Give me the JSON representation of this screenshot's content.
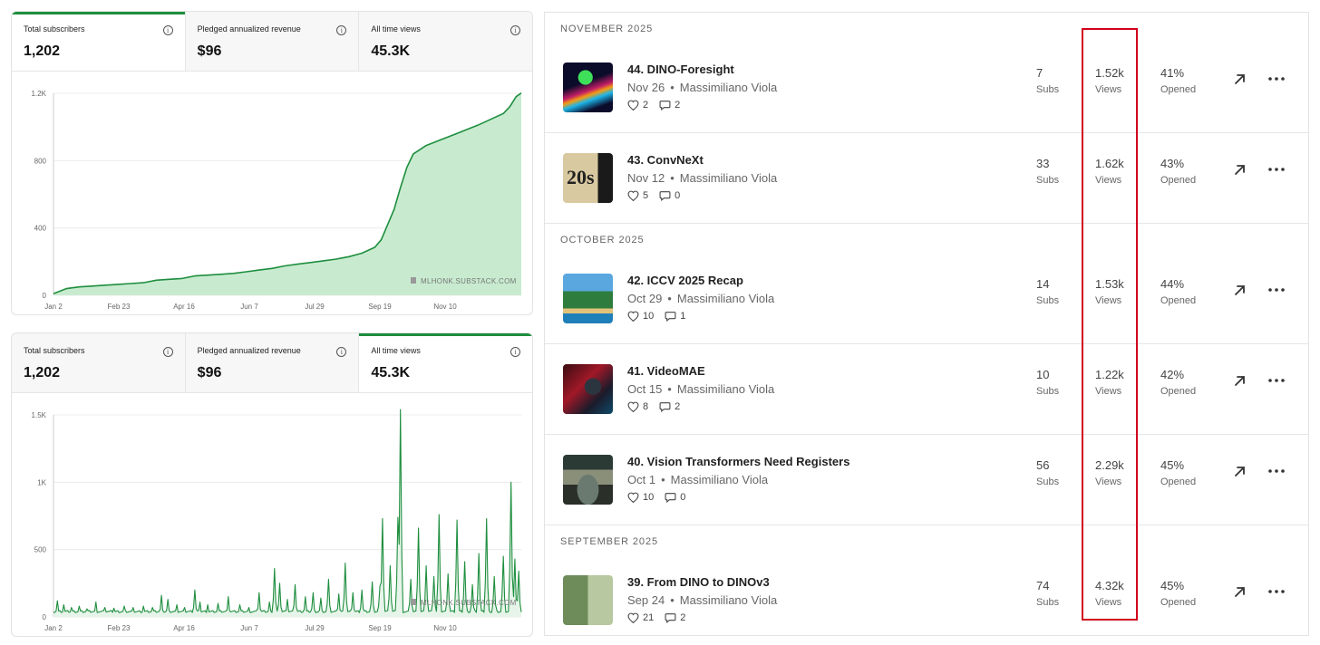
{
  "panels": [
    {
      "stats": [
        {
          "label": "Total subscribers",
          "value": "1,202",
          "active": true
        },
        {
          "label": "Pledged annualized revenue",
          "value": "$96",
          "active": false
        },
        {
          "label": "All time views",
          "value": "45.3K",
          "active": false
        }
      ],
      "chart_data": {
        "type": "area",
        "title": "",
        "xlabel": "",
        "ylabel": "",
        "x_tick_labels": [
          "Jan 2",
          "Feb 23",
          "Apr 16",
          "Jun 7",
          "Jul 29",
          "Sep 19",
          "Nov 10"
        ],
        "y_tick_labels": [
          "0",
          "400",
          "800",
          "1.2K"
        ],
        "ylim": [
          0,
          1200
        ],
        "grid": "horizontal",
        "color": "#1e8e3e",
        "fill": "#c8ebd0",
        "watermark": "MLHONK.SUBSTACK.COM",
        "series": [
          {
            "values": [
              [
                0,
                10
              ],
              [
                10,
                40
              ],
              [
                20,
                50
              ],
              [
                30,
                55
              ],
              [
                40,
                60
              ],
              [
                50,
                65
              ],
              [
                60,
                70
              ],
              [
                70,
                75
              ],
              [
                80,
                90
              ],
              [
                90,
                95
              ],
              [
                100,
                100
              ],
              [
                110,
                115
              ],
              [
                120,
                120
              ],
              [
                130,
                125
              ],
              [
                140,
                130
              ],
              [
                150,
                140
              ],
              [
                160,
                150
              ],
              [
                170,
                160
              ],
              [
                180,
                175
              ],
              [
                190,
                185
              ],
              [
                200,
                195
              ],
              [
                210,
                205
              ],
              [
                220,
                215
              ],
              [
                230,
                230
              ],
              [
                240,
                250
              ],
              [
                250,
                285
              ],
              [
                255,
                330
              ],
              [
                260,
                420
              ],
              [
                265,
                510
              ],
              [
                270,
                640
              ],
              [
                275,
                760
              ],
              [
                280,
                840
              ],
              [
                290,
                890
              ],
              [
                300,
                920
              ],
              [
                310,
                950
              ],
              [
                320,
                980
              ],
              [
                330,
                1010
              ],
              [
                340,
                1045
              ],
              [
                350,
                1080
              ],
              [
                355,
                1120
              ],
              [
                360,
                1180
              ],
              [
                364,
                1202
              ]
            ]
          }
        ]
      }
    },
    {
      "stats": [
        {
          "label": "Total subscribers",
          "value": "1,202",
          "active": false
        },
        {
          "label": "Pledged annualized revenue",
          "value": "$96",
          "active": false
        },
        {
          "label": "All time views",
          "value": "45.3K",
          "active": true
        }
      ],
      "chart_data": {
        "type": "line",
        "title": "",
        "xlabel": "",
        "ylabel": "",
        "x_tick_labels": [
          "Jan 2",
          "Feb 23",
          "Apr 16",
          "Jun 7",
          "Jul 29",
          "Sep 19",
          "Nov 10"
        ],
        "y_tick_labels": [
          "0",
          "500",
          "1K",
          "1.5K"
        ],
        "ylim": [
          0,
          1500
        ],
        "grid": "horizontal",
        "color": "#1e8e3e",
        "fill": "#e6f4e9",
        "watermark": "MLHONK.SUBSTACK.COM",
        "baseline": 40,
        "spikes": [
          [
            3,
            120
          ],
          [
            8,
            90
          ],
          [
            14,
            70
          ],
          [
            20,
            80
          ],
          [
            26,
            60
          ],
          [
            33,
            110
          ],
          [
            40,
            70
          ],
          [
            47,
            65
          ],
          [
            55,
            80
          ],
          [
            62,
            70
          ],
          [
            70,
            80
          ],
          [
            77,
            70
          ],
          [
            84,
            160
          ],
          [
            89,
            130
          ],
          [
            96,
            90
          ],
          [
            102,
            70
          ],
          [
            110,
            200
          ],
          [
            114,
            110
          ],
          [
            120,
            90
          ],
          [
            128,
            100
          ],
          [
            136,
            150
          ],
          [
            145,
            90
          ],
          [
            152,
            70
          ],
          [
            160,
            180
          ],
          [
            168,
            110
          ],
          [
            172,
            360
          ],
          [
            176,
            250
          ],
          [
            182,
            130
          ],
          [
            188,
            240
          ],
          [
            196,
            150
          ],
          [
            202,
            180
          ],
          [
            208,
            140
          ],
          [
            214,
            280
          ],
          [
            222,
            170
          ],
          [
            227,
            400
          ],
          [
            233,
            180
          ],
          [
            240,
            200
          ],
          [
            248,
            260
          ],
          [
            254,
            230
          ],
          [
            256,
            730
          ],
          [
            262,
            380
          ],
          [
            268,
            740
          ],
          [
            270,
            1540
          ],
          [
            278,
            280
          ],
          [
            284,
            660
          ],
          [
            290,
            380
          ],
          [
            296,
            300
          ],
          [
            300,
            760
          ],
          [
            307,
            320
          ],
          [
            314,
            720
          ],
          [
            320,
            410
          ],
          [
            326,
            240
          ],
          [
            331,
            470
          ],
          [
            337,
            730
          ],
          [
            343,
            300
          ],
          [
            350,
            450
          ],
          [
            356,
            1000
          ],
          [
            359,
            430
          ],
          [
            362,
            340
          ]
        ]
      }
    }
  ],
  "posts": {
    "groups": [
      {
        "month": "NOVEMBER 2025",
        "items": [
          {
            "title": "44. DINO-Foresight",
            "date": "Nov 26",
            "author": "Massimiliano Viola",
            "likes": "2",
            "comments": "2",
            "subs": "7",
            "subs_label": "Subs",
            "views": "1.52k",
            "views_label": "Views",
            "opened": "41%",
            "opened_label": "Opened",
            "thumb": "dino-foresight"
          },
          {
            "title": "43. ConvNeXt",
            "date": "Nov 12",
            "author": "Massimiliano Viola",
            "likes": "5",
            "comments": "0",
            "subs": "33",
            "subs_label": "Subs",
            "views": "1.62k",
            "views_label": "Views",
            "opened": "43%",
            "opened_label": "Opened",
            "thumb": "roaring-20s"
          }
        ]
      },
      {
        "month": "OCTOBER 2025",
        "items": [
          {
            "title": "42. ICCV 2025 Recap",
            "date": "Oct 29",
            "author": "Massimiliano Viola",
            "likes": "10",
            "comments": "1",
            "subs": "14",
            "subs_label": "Subs",
            "views": "1.53k",
            "views_label": "Views",
            "opened": "44%",
            "opened_label": "Opened",
            "thumb": "iccv-hawaii"
          },
          {
            "title": "41. VideoMAE",
            "date": "Oct 15",
            "author": "Massimiliano Viola",
            "likes": "8",
            "comments": "2",
            "subs": "10",
            "subs_label": "Subs",
            "views": "1.22k",
            "views_label": "Views",
            "opened": "42%",
            "opened_label": "Opened",
            "thumb": "video-camera"
          },
          {
            "title": "40. Vision Transformers Need Registers",
            "date": "Oct 1",
            "author": "Massimiliano Viola",
            "likes": "10",
            "comments": "0",
            "subs": "56",
            "subs_label": "Subs",
            "views": "2.29k",
            "views_label": "Views",
            "opened": "45%",
            "opened_label": "Opened",
            "thumb": "cash-register"
          }
        ]
      },
      {
        "month": "SEPTEMBER 2025",
        "items": [
          {
            "title": "39. From DINO to DINOv3",
            "date": "Sep 24",
            "author": "Massimiliano Viola",
            "likes": "21",
            "comments": "2",
            "subs": "74",
            "subs_label": "Subs",
            "views": "4.32k",
            "views_label": "Views",
            "opened": "45%",
            "opened_label": "Opened",
            "thumb": "dinosaurs"
          }
        ]
      }
    ]
  },
  "colors": {
    "accent": "#1e8e3e",
    "highlight": "#d0021b"
  }
}
